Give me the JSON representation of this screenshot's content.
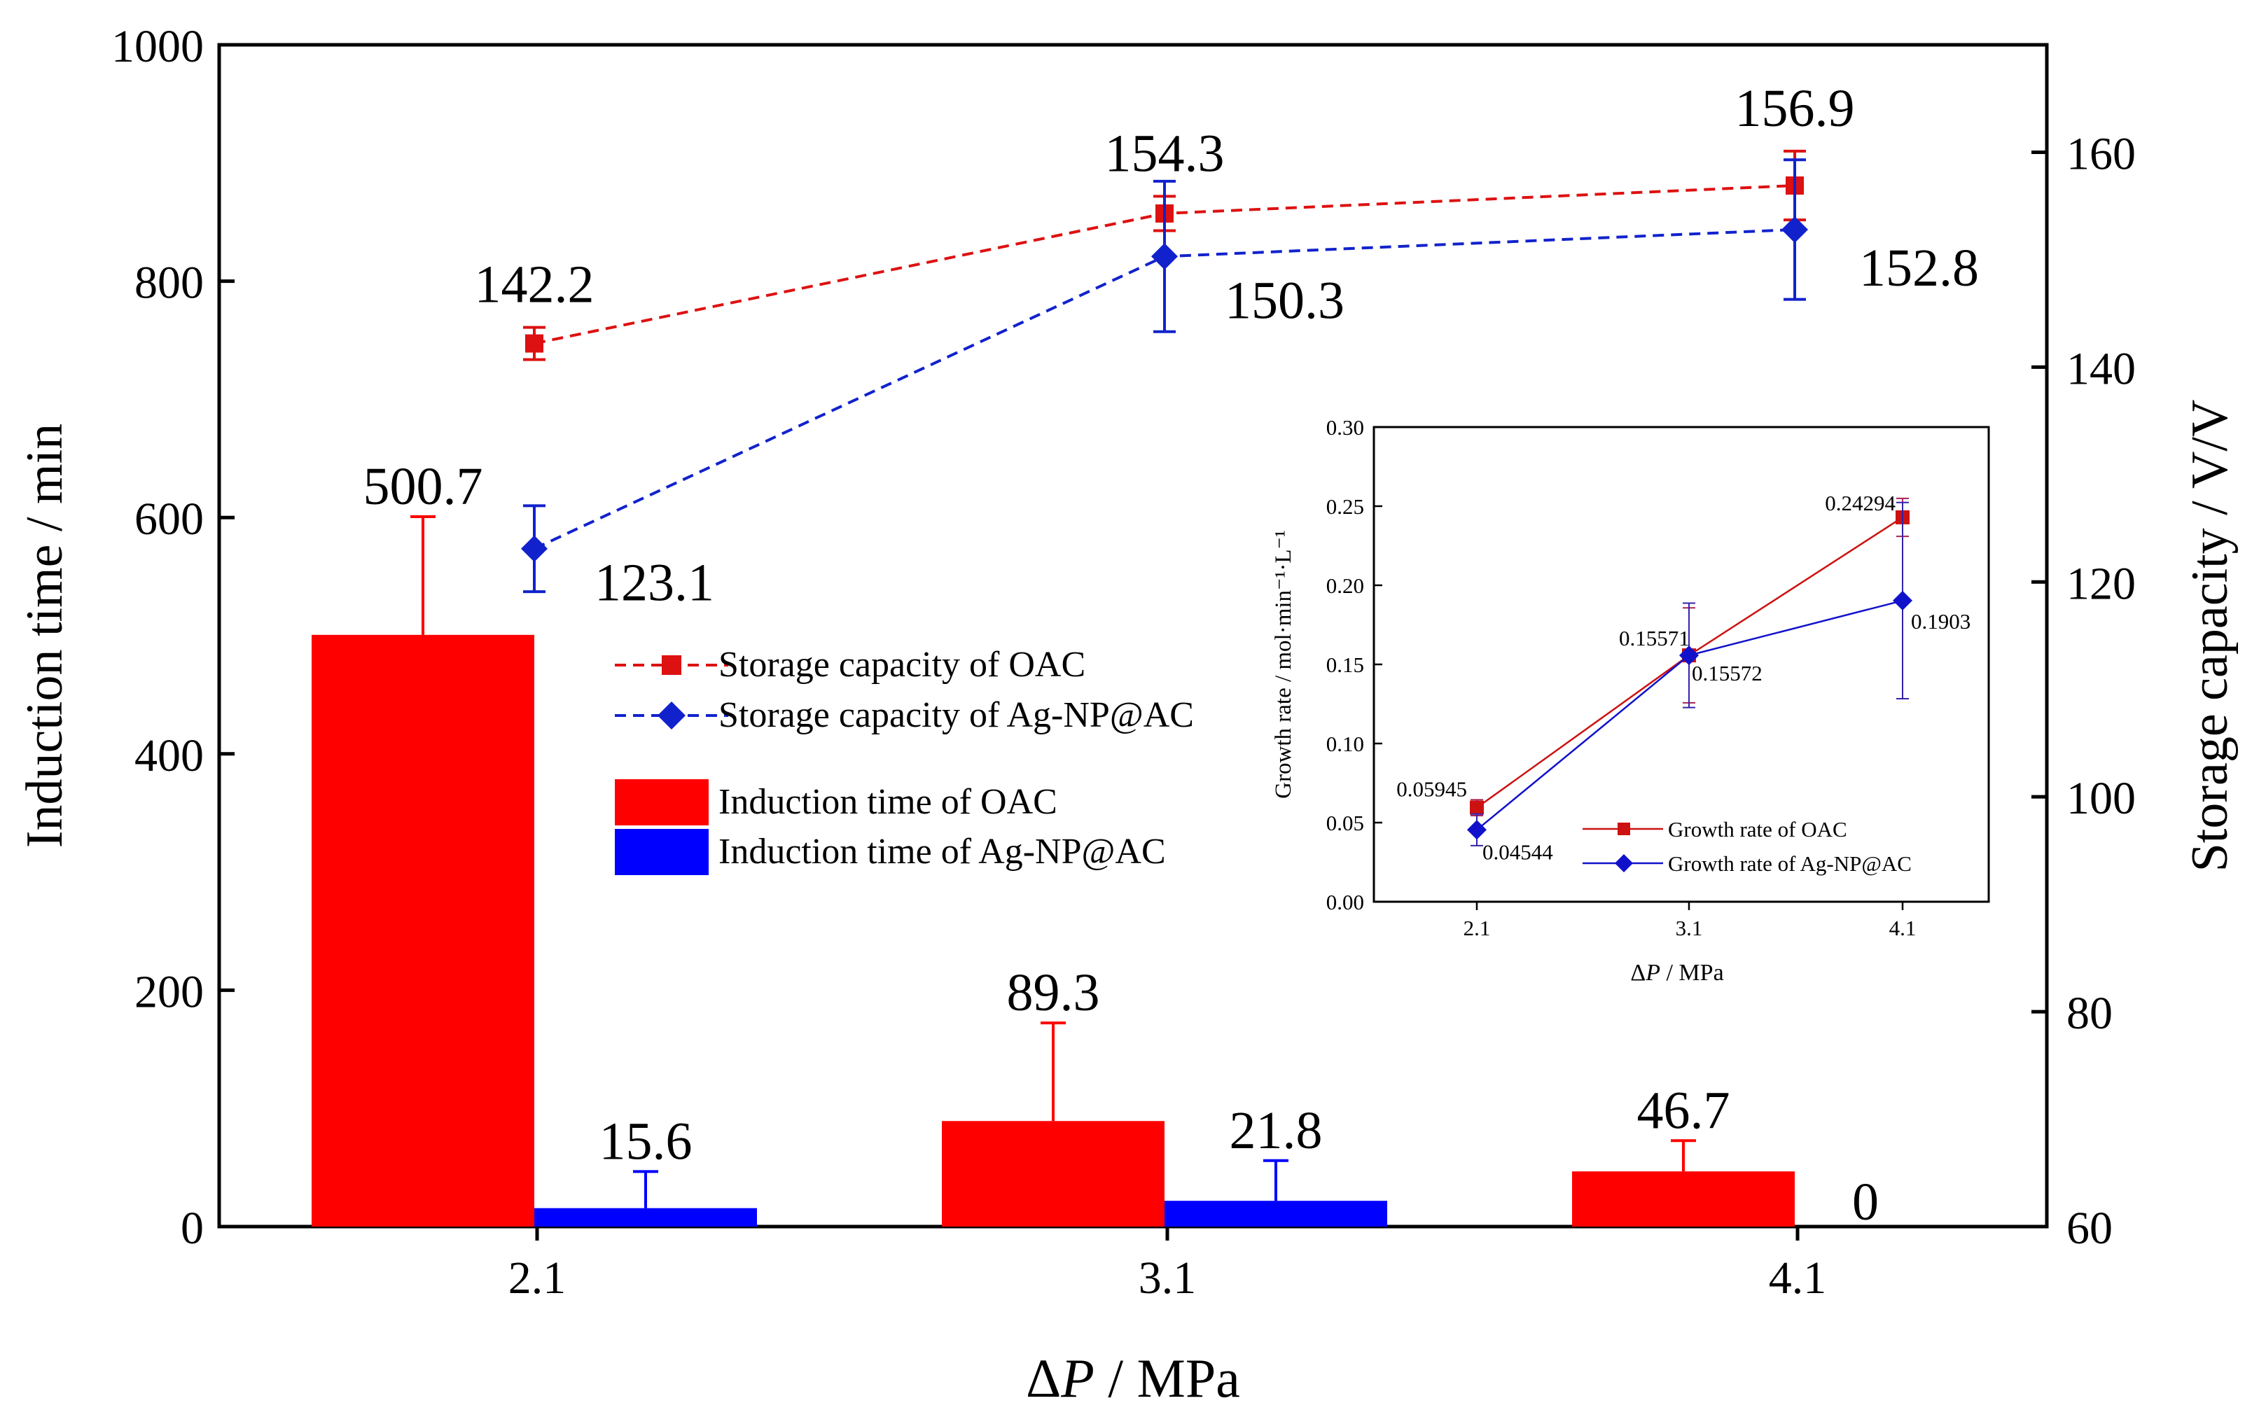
{
  "chart_data": [
    {
      "type": "bar+line",
      "xlabel_prefix": "Δ",
      "xlabel_italic": "P",
      "xlabel_suffix": " / MPa",
      "ylabel": "Induction time / min",
      "ylabel_right": "Storage capacity / V/V",
      "categories": [
        "2.1",
        "3.1",
        "4.1"
      ],
      "ylim": [
        0,
        1000
      ],
      "y2lim": [
        60,
        170
      ],
      "yticks": [
        "0",
        "200",
        "400",
        "600",
        "800",
        "1000"
      ],
      "y2ticks": [
        "60",
        "80",
        "100",
        "120",
        "140",
        "160"
      ],
      "bar_series": [
        {
          "name": "Induction time of OAC",
          "color": "#ff0000",
          "values": [
            500.7,
            89.3,
            46.7
          ],
          "errors": [
            100,
            83,
            26
          ],
          "labels": [
            "500.7",
            "89.3",
            "46.7"
          ]
        },
        {
          "name": "Induction time of Ag-NP@AC",
          "color": "#0000ff",
          "values": [
            15.6,
            21.8,
            0
          ],
          "errors": [
            31,
            34,
            0
          ],
          "labels": [
            "15.6",
            "21.8",
            "0"
          ]
        }
      ],
      "line_series": [
        {
          "name": "Storage capacity of OAC",
          "color": "#dd1111",
          "marker": "square",
          "values": [
            142.2,
            154.3,
            156.9
          ],
          "errors": [
            1.5,
            1.6,
            3.2
          ],
          "labels": [
            "142.2",
            "154.3",
            "156.9"
          ]
        },
        {
          "name": "Storage capacity of Ag-NP@AC",
          "color": "#1122cc",
          "marker": "diamond",
          "values": [
            123.1,
            150.3,
            152.8
          ],
          "errors": [
            4.0,
            7.0,
            6.5
          ],
          "labels": [
            "123.1",
            "150.3",
            "152.8"
          ]
        }
      ],
      "legend_position": "center"
    },
    {
      "type": "line",
      "xlabel_prefix": "Δ",
      "xlabel_italic": "P",
      "xlabel_suffix": " / MPa",
      "ylabel": "Growth rate / mol·min⁻¹·L⁻¹",
      "categories": [
        "2.1",
        "3.1",
        "4.1"
      ],
      "ylim": [
        0,
        0.3
      ],
      "yticks": [
        "0.00",
        "0.05",
        "0.10",
        "0.15",
        "0.20",
        "0.25",
        "0.30"
      ],
      "series": [
        {
          "name": "Growth rate of OAC",
          "color": "#cc1111",
          "marker": "square",
          "values": [
            0.05945,
            0.15571,
            0.24294
          ],
          "errors": [
            0.005,
            0.03,
            0.012
          ],
          "labels": [
            "0.05945",
            "0.15571",
            "0.24294"
          ]
        },
        {
          "name": "Growth rate of Ag-NP@AC",
          "color": "#1111cc",
          "marker": "diamond",
          "values": [
            0.04544,
            0.15572,
            0.1903
          ],
          "errors": [
            0.01,
            0.033,
            0.062
          ],
          "labels": [
            "0.04544",
            "0.15572",
            "0.1903"
          ]
        }
      ],
      "legend_position": "bottom-right"
    }
  ]
}
